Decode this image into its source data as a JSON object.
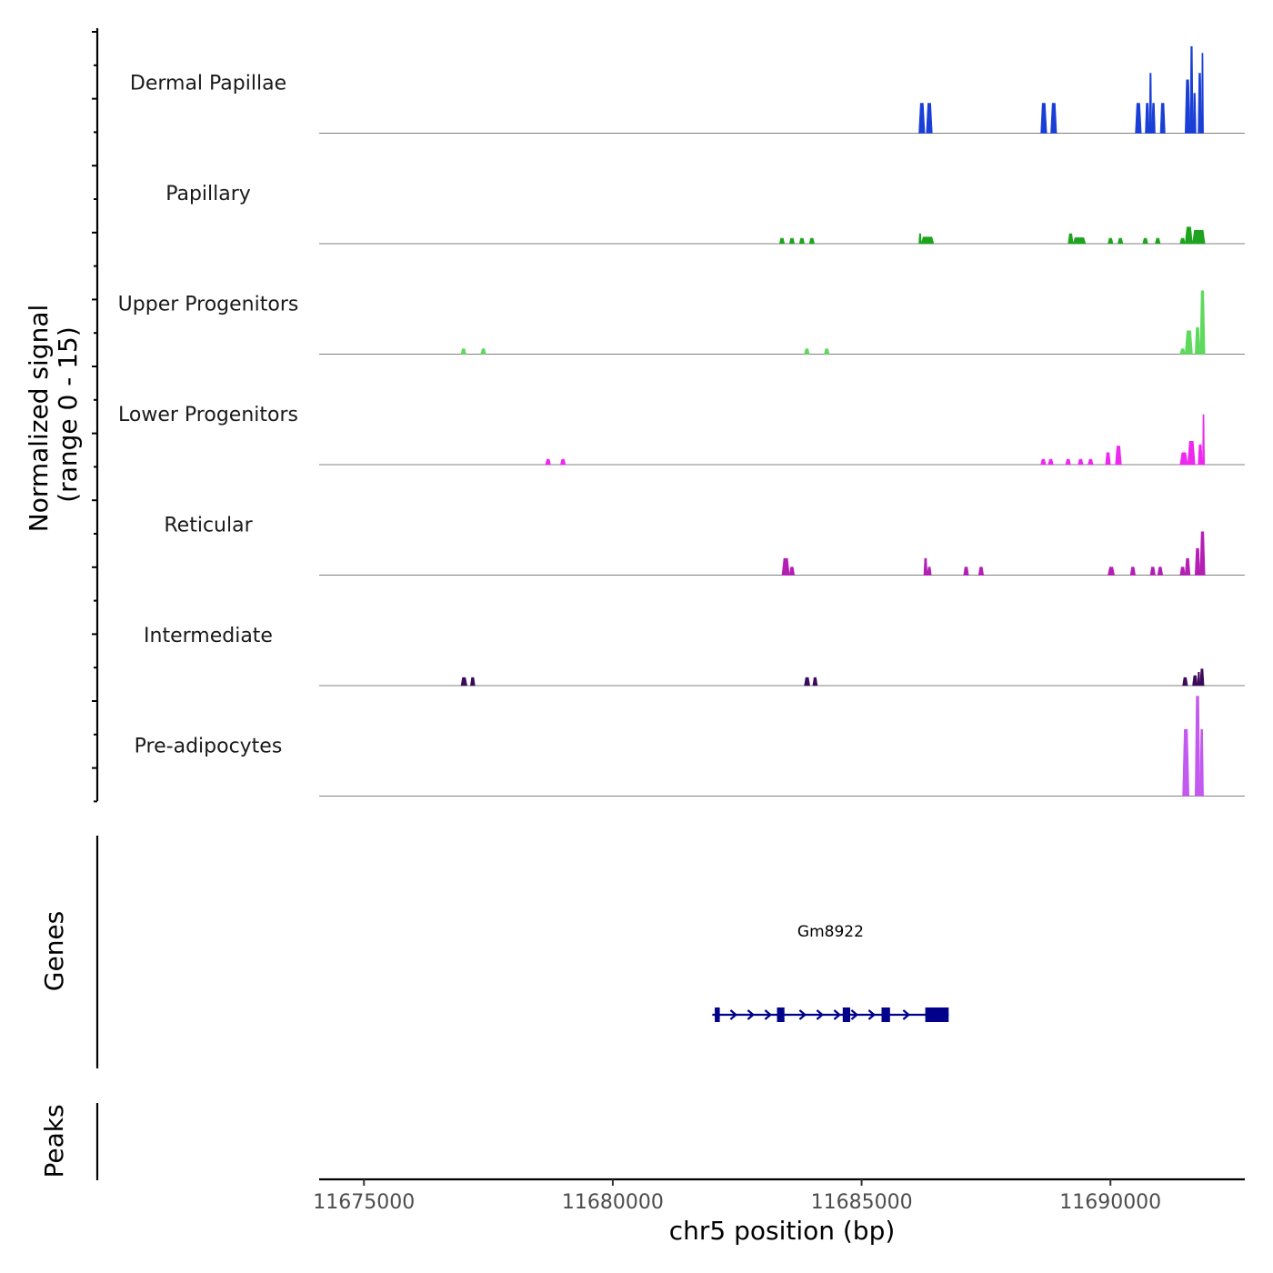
{
  "chart_data": {
    "type": "area",
    "title": "",
    "chromosome": "chr5",
    "xlabel": "chr5 position (bp)",
    "ylabel": "Normalized signal",
    "ylabel_sub": "(range 0 - 15)",
    "ylim": [
      0,
      15
    ],
    "xlim": [
      11674100,
      11692700
    ],
    "x_ticks": [
      11675000,
      11680000,
      11685000,
      11690000
    ],
    "x_tick_labels": [
      "11675000",
      "11680000",
      "11685000",
      "11690000"
    ],
    "panels": {
      "genes_label": "Genes",
      "peaks_label": "Peaks"
    },
    "tracks": [
      {
        "name": "Dermal Papillae",
        "color": "#1a3fd6",
        "peaks": [
          {
            "start": 11686150,
            "end": 11686270,
            "value": 4.5
          },
          {
            "start": 11686300,
            "end": 11686420,
            "value": 4.5
          },
          {
            "start": 11688600,
            "end": 11688720,
            "value": 4.5
          },
          {
            "start": 11688800,
            "end": 11688920,
            "value": 4.5
          },
          {
            "start": 11690500,
            "end": 11690620,
            "value": 4.5
          },
          {
            "start": 11690700,
            "end": 11690780,
            "value": 4.5
          },
          {
            "start": 11690780,
            "end": 11690830,
            "value": 9.0
          },
          {
            "start": 11690830,
            "end": 11690900,
            "value": 4.5
          },
          {
            "start": 11691000,
            "end": 11691100,
            "value": 4.5
          },
          {
            "start": 11691500,
            "end": 11691600,
            "value": 8.0
          },
          {
            "start": 11691600,
            "end": 11691660,
            "value": 13.0
          },
          {
            "start": 11691660,
            "end": 11691720,
            "value": 6.0
          },
          {
            "start": 11691760,
            "end": 11691830,
            "value": 9.0
          },
          {
            "start": 11691830,
            "end": 11691870,
            "value": 12.0
          }
        ]
      },
      {
        "name": "Papillary",
        "color": "#1ea31e",
        "peaks": [
          {
            "start": 11683350,
            "end": 11683450,
            "value": 0.8
          },
          {
            "start": 11683550,
            "end": 11683650,
            "value": 0.8
          },
          {
            "start": 11683750,
            "end": 11683850,
            "value": 0.8
          },
          {
            "start": 11683950,
            "end": 11684050,
            "value": 0.8
          },
          {
            "start": 11686150,
            "end": 11686200,
            "value": 1.5
          },
          {
            "start": 11686200,
            "end": 11686450,
            "value": 1.0
          },
          {
            "start": 11689150,
            "end": 11689250,
            "value": 1.5
          },
          {
            "start": 11689250,
            "end": 11689500,
            "value": 0.9
          },
          {
            "start": 11689950,
            "end": 11690050,
            "value": 0.8
          },
          {
            "start": 11690150,
            "end": 11690250,
            "value": 0.8
          },
          {
            "start": 11690650,
            "end": 11690750,
            "value": 0.8
          },
          {
            "start": 11690900,
            "end": 11691000,
            "value": 0.8
          },
          {
            "start": 11691400,
            "end": 11691500,
            "value": 0.8
          },
          {
            "start": 11691500,
            "end": 11691650,
            "value": 2.5
          },
          {
            "start": 11691650,
            "end": 11691900,
            "value": 2.0
          }
        ]
      },
      {
        "name": "Upper Progenitors",
        "color": "#5ed95e",
        "peaks": [
          {
            "start": 11676950,
            "end": 11677050,
            "value": 0.8
          },
          {
            "start": 11677350,
            "end": 11677450,
            "value": 0.8
          },
          {
            "start": 11683850,
            "end": 11683950,
            "value": 0.8
          },
          {
            "start": 11684250,
            "end": 11684350,
            "value": 0.8
          },
          {
            "start": 11691400,
            "end": 11691500,
            "value": 0.8
          },
          {
            "start": 11691500,
            "end": 11691650,
            "value": 3.5
          },
          {
            "start": 11691700,
            "end": 11691800,
            "value": 4.0
          },
          {
            "start": 11691800,
            "end": 11691900,
            "value": 9.5
          }
        ]
      },
      {
        "name": "Lower Progenitors",
        "color": "#ee28ee",
        "peaks": [
          {
            "start": 11678650,
            "end": 11678750,
            "value": 0.8
          },
          {
            "start": 11678950,
            "end": 11679050,
            "value": 0.8
          },
          {
            "start": 11688600,
            "end": 11688700,
            "value": 0.8
          },
          {
            "start": 11688750,
            "end": 11688850,
            "value": 0.8
          },
          {
            "start": 11689100,
            "end": 11689200,
            "value": 0.8
          },
          {
            "start": 11689350,
            "end": 11689450,
            "value": 0.8
          },
          {
            "start": 11689550,
            "end": 11689650,
            "value": 0.8
          },
          {
            "start": 11689900,
            "end": 11690000,
            "value": 1.8
          },
          {
            "start": 11690100,
            "end": 11690220,
            "value": 2.8
          },
          {
            "start": 11691400,
            "end": 11691550,
            "value": 1.8
          },
          {
            "start": 11691550,
            "end": 11691700,
            "value": 3.5
          },
          {
            "start": 11691760,
            "end": 11691850,
            "value": 3.0
          },
          {
            "start": 11691850,
            "end": 11691890,
            "value": 7.5
          }
        ]
      },
      {
        "name": "Reticular",
        "color": "#b41eb4",
        "peaks": [
          {
            "start": 11683400,
            "end": 11683550,
            "value": 2.5
          },
          {
            "start": 11683550,
            "end": 11683650,
            "value": 1.2
          },
          {
            "start": 11686250,
            "end": 11686320,
            "value": 2.5
          },
          {
            "start": 11686320,
            "end": 11686400,
            "value": 1.2
          },
          {
            "start": 11687050,
            "end": 11687150,
            "value": 1.2
          },
          {
            "start": 11687350,
            "end": 11687450,
            "value": 1.2
          },
          {
            "start": 11689950,
            "end": 11690080,
            "value": 1.2
          },
          {
            "start": 11690400,
            "end": 11690500,
            "value": 1.2
          },
          {
            "start": 11690800,
            "end": 11690900,
            "value": 1.2
          },
          {
            "start": 11690950,
            "end": 11691050,
            "value": 1.2
          },
          {
            "start": 11691400,
            "end": 11691500,
            "value": 1.2
          },
          {
            "start": 11691500,
            "end": 11691600,
            "value": 2.5
          },
          {
            "start": 11691700,
            "end": 11691800,
            "value": 4.0
          },
          {
            "start": 11691800,
            "end": 11691900,
            "value": 6.5
          }
        ]
      },
      {
        "name": "Intermediate",
        "color": "#3c0a5a",
        "peaks": [
          {
            "start": 11676950,
            "end": 11677070,
            "value": 1.2
          },
          {
            "start": 11677140,
            "end": 11677230,
            "value": 1.2
          },
          {
            "start": 11683850,
            "end": 11683960,
            "value": 1.2
          },
          {
            "start": 11684020,
            "end": 11684110,
            "value": 1.2
          },
          {
            "start": 11691450,
            "end": 11691550,
            "value": 1.2
          },
          {
            "start": 11691650,
            "end": 11691750,
            "value": 1.5
          },
          {
            "start": 11691750,
            "end": 11691800,
            "value": 2.0
          },
          {
            "start": 11691800,
            "end": 11691880,
            "value": 2.5
          }
        ]
      },
      {
        "name": "Pre-adipocytes",
        "color": "#c25af0",
        "peaks": [
          {
            "start": 11691450,
            "end": 11691580,
            "value": 10.0
          },
          {
            "start": 11691700,
            "end": 11691800,
            "value": 15.0
          },
          {
            "start": 11691800,
            "end": 11691870,
            "value": 10.0
          }
        ]
      }
    ],
    "genes": [
      {
        "name": "Gm8922",
        "strand": "+",
        "color": "#00008b",
        "start": 11682000,
        "end": 11686750,
        "exons": [
          [
            11682050,
            11682150
          ],
          [
            11683300,
            11683450
          ],
          [
            11684620,
            11684770
          ],
          [
            11685400,
            11685570
          ],
          [
            11686280,
            11686750
          ]
        ]
      }
    ]
  }
}
